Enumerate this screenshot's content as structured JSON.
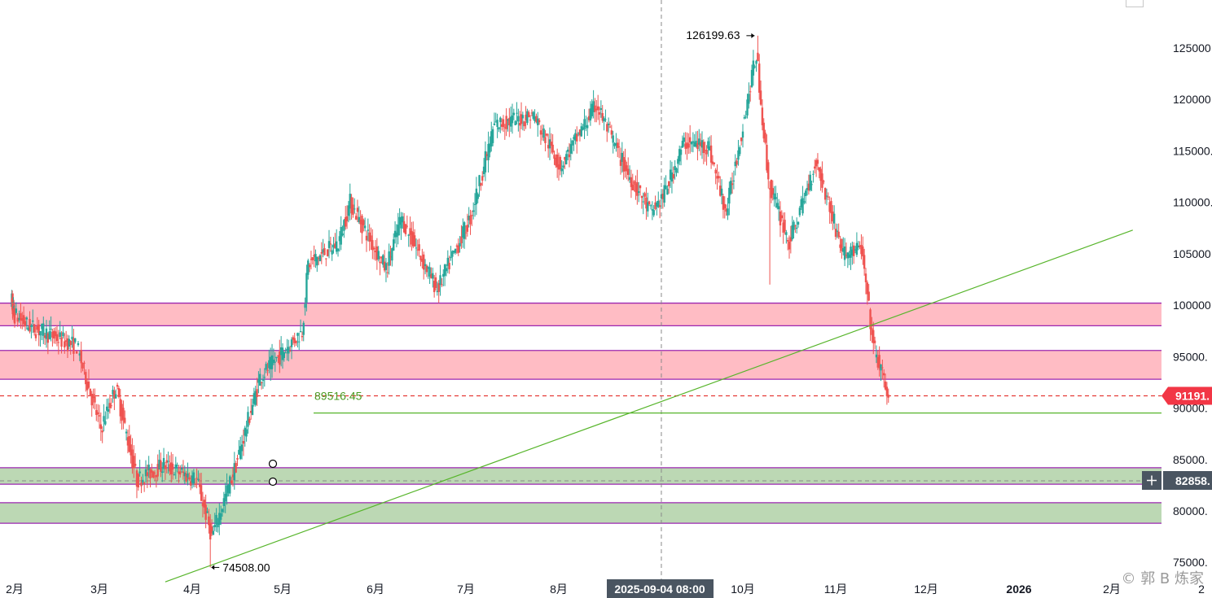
{
  "chart_data": {
    "type": "candlestick",
    "x_tick_labels": [
      "2月",
      "3月",
      "4月",
      "5月",
      "6月",
      "7月",
      "8月",
      "10月",
      "11月",
      "12月",
      "2026",
      "2月",
      "2"
    ],
    "crosshair_date_label": "2025-09-04 08:00",
    "y_tick_labels": [
      "125000.",
      "120000.",
      "115000.",
      "110000.",
      "105000.",
      "100000.",
      "95000.",
      "90000.",
      "85000.",
      "80000.",
      "75000."
    ],
    "ylim": [
      73000,
      129000
    ],
    "annotations": {
      "high_label": "126199.63",
      "low_label": "74508.00",
      "support_line_label": "89516.45"
    },
    "current_price_tag": "91191.",
    "crosshair_price_tag": "82858.",
    "zones": [
      {
        "type": "resistance",
        "from": 98000,
        "to": 100200,
        "color": "#ffbcc4"
      },
      {
        "type": "resistance",
        "from": 92800,
        "to": 95600,
        "color": "#ffbcc4"
      },
      {
        "type": "support",
        "from": 82600,
        "to": 84200,
        "color": "#bcd8b4"
      },
      {
        "type": "support",
        "from": 78800,
        "to": 80800,
        "color": "#bcd8b4"
      }
    ],
    "horizontal_lines": [
      {
        "value": 91191,
        "style": "dashed",
        "color": "#e53935"
      },
      {
        "value": 89516.45,
        "style": "solid",
        "color": "#57b52b"
      }
    ],
    "trendline": {
      "from": {
        "date": "2025-03-23",
        "price": 73100
      },
      "to": {
        "date": "2026-02-08",
        "price": 107300
      }
    },
    "colors": {
      "up": "#26a69a",
      "down": "#ef5350",
      "zone_border": "#9c27b0",
      "trend": "#57b52b"
    },
    "watermark": "© 郭 B 炼家"
  }
}
